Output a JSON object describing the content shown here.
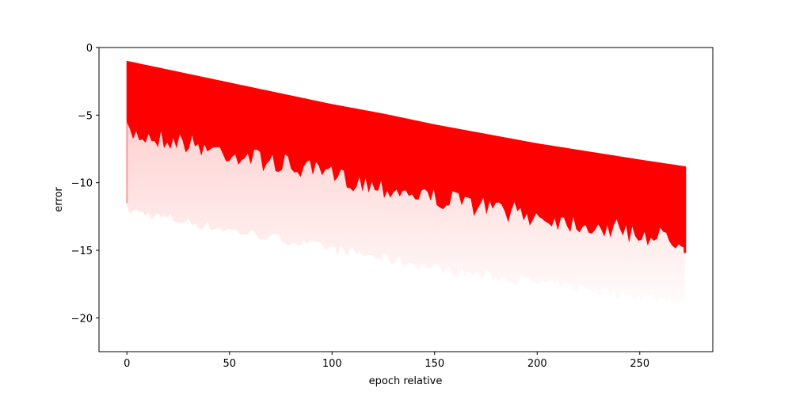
{
  "chart_data": {
    "type": "scatter",
    "title": "",
    "xlabel": "epoch relative",
    "ylabel": "error",
    "xlim": [
      -13.6,
      285.6
    ],
    "ylim": [
      -22.5,
      0.0
    ],
    "x_ticks": [
      0,
      50,
      100,
      150,
      200,
      250
    ],
    "y_ticks": [
      0,
      -5,
      -10,
      -15,
      -20
    ],
    "x_tick_labels": [
      "0",
      "50",
      "100",
      "150",
      "200",
      "250"
    ],
    "y_tick_labels": [
      "0",
      "−5",
      "−10",
      "−15",
      "−20"
    ],
    "grid": false,
    "color": "#ff0000",
    "series": [
      {
        "x": [
          0,
          25,
          50,
          75,
          100,
          125,
          150,
          175,
          200,
          225,
          250,
          272
        ],
        "upper": [
          -1.0,
          -1.8,
          -2.6,
          -3.4,
          -4.2,
          -4.9,
          -5.7,
          -6.4,
          -7.1,
          -7.7,
          -8.3,
          -8.8
        ],
        "dense_lower": [
          -5.8,
          -6.4,
          -7.3,
          -8.1,
          -9.0,
          -9.8,
          -10.6,
          -11.3,
          -12.0,
          -12.6,
          -13.3,
          -13.8
        ],
        "faint_lower": [
          -12.0,
          -12.8,
          -13.5,
          -14.2,
          -14.9,
          -15.6,
          -16.3,
          -16.9,
          -17.4,
          -17.9,
          -18.4,
          -18.8
        ]
      }
    ]
  }
}
